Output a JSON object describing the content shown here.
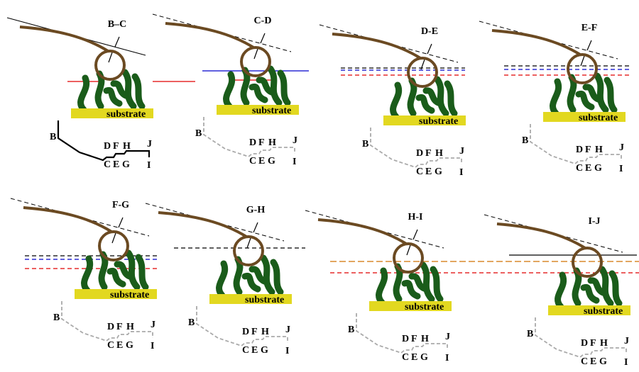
{
  "panels": [
    {
      "title": "B–C",
      "substrate": "substrate",
      "trace_labels": [
        "B",
        "C",
        "D",
        "E",
        "F",
        "G",
        "H",
        "I",
        "J"
      ]
    },
    {
      "title": "C-D",
      "substrate": "substrate",
      "trace_labels": [
        "B",
        "C",
        "D",
        "E",
        "F",
        "G",
        "H",
        "I",
        "J"
      ]
    },
    {
      "title": "D-E",
      "substrate": "substrate",
      "trace_labels": [
        "B",
        "C",
        "D",
        "E",
        "F",
        "G",
        "H",
        "I",
        "J"
      ]
    },
    {
      "title": "E-F",
      "substrate": "substrate",
      "trace_labels": [
        "B",
        "C",
        "D",
        "E",
        "F",
        "G",
        "H",
        "I",
        "J"
      ]
    },
    {
      "title": "F-G",
      "substrate": "substrate",
      "trace_labels": [
        "B",
        "C",
        "D",
        "E",
        "F",
        "G",
        "H",
        "I",
        "J"
      ]
    },
    {
      "title": "G-H",
      "substrate": "substrate",
      "trace_labels": [
        "B",
        "C",
        "D",
        "E",
        "F",
        "G",
        "H",
        "I",
        "J"
      ]
    },
    {
      "title": "H-I",
      "substrate": "substrate",
      "trace_labels": [
        "B",
        "C",
        "D",
        "E",
        "F",
        "G",
        "H",
        "I",
        "J"
      ]
    },
    {
      "title": "I-J",
      "substrate": "substrate",
      "trace_labels": [
        "B",
        "C",
        "D",
        "E",
        "F",
        "G",
        "H",
        "I",
        "J"
      ]
    }
  ]
}
